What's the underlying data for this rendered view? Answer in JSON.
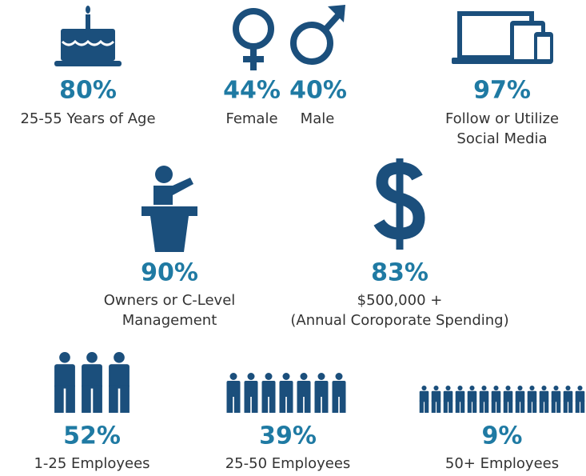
{
  "stats": [
    {
      "values": [
        "80%"
      ],
      "labels": [
        "25-55 Years of Age"
      ]
    },
    {
      "values": [
        "44%",
        "40%"
      ],
      "labels": [
        "Female",
        "Male"
      ]
    },
    {
      "values": [
        "97%"
      ],
      "labels": [
        "Follow or Utilize",
        "Social Media"
      ]
    },
    {
      "values": [
        "90%"
      ],
      "labels": [
        "Owners or C-Level",
        "Management"
      ]
    },
    {
      "values": [
        "83%"
      ],
      "labels": [
        "$500,000 +",
        "(Annual Coroporate Spending)"
      ]
    },
    {
      "values": [
        "52%"
      ],
      "labels": [
        "1-25 Employees"
      ]
    },
    {
      "values": [
        "39%"
      ],
      "labels": [
        "25-50 Employees"
      ]
    },
    {
      "values": [
        "9%"
      ],
      "labels": [
        "50+ Employees"
      ]
    }
  ]
}
